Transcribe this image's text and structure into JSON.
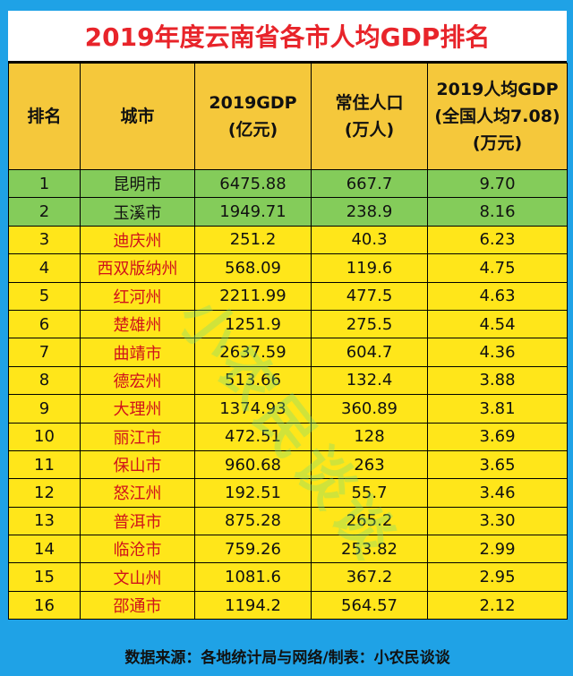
{
  "title": "2019年度云南省各市人均GDP排名",
  "headers": {
    "rank": "排名",
    "city": "城市",
    "gdp": "2019GDP\n(亿元)",
    "pop": "常住人口\n(万人)",
    "per_capita": "2019人均GDP\n(全国人均7.08)\n(万元)"
  },
  "rows": [
    {
      "rank": "1",
      "city": "昆明市",
      "gdp": "6475.88",
      "pop": "667.7",
      "per_capita": "9.70"
    },
    {
      "rank": "2",
      "city": "玉溪市",
      "gdp": "1949.71",
      "pop": "238.9",
      "per_capita": "8.16"
    },
    {
      "rank": "3",
      "city": "迪庆州",
      "gdp": "251.2",
      "pop": "40.3",
      "per_capita": "6.23"
    },
    {
      "rank": "4",
      "city": "西双版纳州",
      "gdp": "568.09",
      "pop": "119.6",
      "per_capita": "4.75"
    },
    {
      "rank": "5",
      "city": "红河州",
      "gdp": "2211.99",
      "pop": "477.5",
      "per_capita": "4.63"
    },
    {
      "rank": "6",
      "city": "楚雄州",
      "gdp": "1251.9",
      "pop": "275.5",
      "per_capita": "4.54"
    },
    {
      "rank": "7",
      "city": "曲靖市",
      "gdp": "2637.59",
      "pop": "604.7",
      "per_capita": "4.36"
    },
    {
      "rank": "8",
      "city": "德宏州",
      "gdp": "513.66",
      "pop": "132.4",
      "per_capita": "3.88"
    },
    {
      "rank": "9",
      "city": "大理州",
      "gdp": "1374.93",
      "pop": "360.89",
      "per_capita": "3.81"
    },
    {
      "rank": "10",
      "city": "丽江市",
      "gdp": "472.51",
      "pop": "128",
      "per_capita": "3.69"
    },
    {
      "rank": "11",
      "city": "保山市",
      "gdp": "960.68",
      "pop": "263",
      "per_capita": "3.65"
    },
    {
      "rank": "12",
      "city": "怒江州",
      "gdp": "192.51",
      "pop": "55.7",
      "per_capita": "3.46"
    },
    {
      "rank": "13",
      "city": "普洱市",
      "gdp": "875.28",
      "pop": "265.2",
      "per_capita": "3.30"
    },
    {
      "rank": "14",
      "city": "临沧市",
      "gdp": "759.26",
      "pop": "253.82",
      "per_capita": "2.99"
    },
    {
      "rank": "15",
      "city": "文山州",
      "gdp": "1081.6",
      "pop": "367.2",
      "per_capita": "2.95"
    },
    {
      "rank": "16",
      "city": "邵通市",
      "gdp": "1194.2",
      "pop": "564.57",
      "per_capita": "2.12"
    }
  ],
  "footer": "数据来源：各地统计局与网络/制表：小农民谈谈",
  "watermark": "小农民谈谈",
  "colors": {
    "background": "#1fa2e6",
    "title_text": "#e8242a",
    "header_bg": "#f5c83b",
    "top_rows_bg": "#84cc5a",
    "other_rows_bg": "#ffe61a",
    "city_text_red": "#d0121a"
  }
}
